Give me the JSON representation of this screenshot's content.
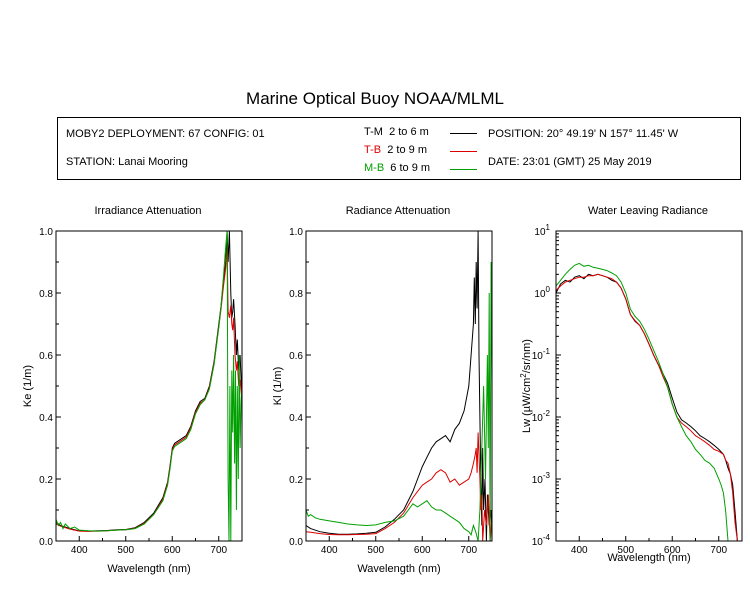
{
  "title": "Marine Optical Buoy NOAA/MLML",
  "info": {
    "deployment": "MOBY2 DEPLOYMENT: 67 CONFIG: 01",
    "station": "STATION: Lanai Mooring",
    "position": "POSITION: 20° 49.19' N   157° 11.45' W",
    "date": "DATE: 23:01 (GMT) 25 May 2019"
  },
  "legend": [
    {
      "code": "T-M",
      "range": "2 to 6  m",
      "color": "#000000"
    },
    {
      "code": "T-B",
      "range": "2 to 9  m",
      "color": "#dd0000"
    },
    {
      "code": "M-B",
      "range": "6 to 9  m",
      "color": "#00a000"
    }
  ],
  "chart_data": [
    {
      "type": "line",
      "title": "Irradiance Attenuation",
      "xlabel": "Wavelength (nm)",
      "ylabel": "Ke  (1/m)",
      "xlim": [
        350,
        750
      ],
      "ylim": [
        0,
        1.0
      ],
      "xticks": [
        "400",
        "500",
        "600",
        "700"
      ],
      "yticks": [
        "0.0",
        "0.2",
        "0.4",
        "0.6",
        "0.8",
        "1.0"
      ],
      "series": [
        {
          "color": "#000000",
          "x": [
            350,
            360,
            380,
            400,
            420,
            440,
            460,
            480,
            500,
            520,
            540,
            560,
            580,
            590,
            595,
            600,
            605,
            610,
            620,
            630,
            640,
            650,
            660,
            670,
            680,
            690,
            700,
            705,
            710,
            715,
            718,
            720,
            723,
            726,
            728,
            730,
            732,
            735,
            738,
            740,
            743,
            746,
            750
          ],
          "y": [
            0.06,
            0.05,
            0.04,
            0.033,
            0.032,
            0.033,
            0.034,
            0.036,
            0.037,
            0.043,
            0.06,
            0.09,
            0.14,
            0.19,
            0.24,
            0.3,
            0.315,
            0.32,
            0.33,
            0.34,
            0.37,
            0.42,
            0.45,
            0.46,
            0.5,
            0.58,
            0.7,
            0.76,
            0.84,
            0.9,
            1.0,
            0.9,
            1.0,
            0.8,
            0.72,
            0.74,
            0.78,
            0.7,
            0.6,
            0.65,
            0.55,
            0.6,
            0.45
          ]
        },
        {
          "color": "#dd0000",
          "x": [
            350,
            360,
            380,
            400,
            420,
            440,
            460,
            480,
            500,
            520,
            540,
            560,
            580,
            590,
            595,
            600,
            605,
            610,
            620,
            630,
            640,
            650,
            660,
            670,
            680,
            690,
            700,
            705,
            710,
            715,
            718,
            720,
            723,
            726,
            728,
            730,
            732,
            735,
            738,
            740,
            743,
            746,
            750
          ],
          "y": [
            0.055,
            0.048,
            0.038,
            0.032,
            0.031,
            0.032,
            0.033,
            0.035,
            0.036,
            0.041,
            0.057,
            0.085,
            0.135,
            0.185,
            0.235,
            0.295,
            0.31,
            0.315,
            0.325,
            0.335,
            0.365,
            0.415,
            0.445,
            0.455,
            0.495,
            0.575,
            0.69,
            0.75,
            0.82,
            0.88,
            0.95,
            0.74,
            0.72,
            0.76,
            0.7,
            0.68,
            0.72,
            0.6,
            0.55,
            0.58,
            0.5,
            0.52,
            0.45
          ]
        },
        {
          "color": "#00a000",
          "x": [
            350,
            355,
            360,
            365,
            370,
            380,
            390,
            400,
            420,
            440,
            460,
            480,
            500,
            520,
            540,
            560,
            580,
            590,
            595,
            600,
            605,
            610,
            620,
            630,
            640,
            650,
            660,
            670,
            680,
            690,
            700,
            705,
            710,
            715,
            718,
            720,
            722,
            724,
            726,
            728,
            730,
            732,
            734,
            736,
            738,
            740,
            742,
            744,
            746,
            748,
            750
          ],
          "y": [
            0.07,
            0.05,
            0.06,
            0.04,
            0.055,
            0.04,
            0.045,
            0.035,
            0.033,
            0.032,
            0.033,
            0.035,
            0.036,
            0.04,
            0.055,
            0.085,
            0.13,
            0.18,
            0.23,
            0.29,
            0.305,
            0.31,
            0.32,
            0.33,
            0.36,
            0.41,
            0.44,
            0.455,
            0.49,
            0.57,
            0.69,
            0.76,
            0.85,
            0.95,
            1.0,
            0.2,
            0.0,
            0.5,
            0.0,
            0.55,
            0.35,
            0.6,
            0.25,
            0.55,
            0.1,
            0.5,
            0.2,
            0.6,
            0.3,
            0.45,
            0.5
          ]
        }
      ]
    },
    {
      "type": "line",
      "title": "Radiance Attenuation",
      "xlabel": "Wavelength (nm)",
      "ylabel": "Kl  (1/m)",
      "xlim": [
        350,
        750
      ],
      "ylim": [
        0,
        1.0
      ],
      "xticks": [
        "400",
        "500",
        "600",
        "700"
      ],
      "yticks": [
        "0.0",
        "0.2",
        "0.4",
        "0.6",
        "0.8",
        "1.0"
      ],
      "series": [
        {
          "color": "#000000",
          "x": [
            350,
            360,
            380,
            400,
            420,
            440,
            460,
            480,
            500,
            520,
            540,
            560,
            580,
            590,
            600,
            610,
            620,
            630,
            640,
            650,
            660,
            670,
            680,
            690,
            700,
            705,
            710,
            712,
            714,
            716,
            718,
            720,
            722,
            724,
            726,
            728,
            730,
            732,
            735,
            738,
            740,
            744,
            748,
            750
          ],
          "y": [
            0.05,
            0.04,
            0.03,
            0.025,
            0.022,
            0.022,
            0.023,
            0.025,
            0.028,
            0.045,
            0.07,
            0.1,
            0.16,
            0.2,
            0.24,
            0.27,
            0.3,
            0.32,
            0.33,
            0.34,
            0.32,
            0.36,
            0.38,
            0.42,
            0.5,
            0.6,
            0.7,
            0.85,
            0.7,
            0.9,
            0.75,
            1.0,
            0.6,
            0.4,
            0.2,
            0.05,
            0.3,
            0.1,
            0.2,
            0.0,
            0.15,
            0.05,
            0.1,
            0.0
          ]
        },
        {
          "color": "#dd0000",
          "x": [
            350,
            360,
            380,
            400,
            420,
            440,
            460,
            480,
            500,
            520,
            540,
            560,
            580,
            590,
            600,
            610,
            620,
            630,
            640,
            650,
            660,
            670,
            680,
            690,
            700,
            705,
            710,
            714,
            716,
            718,
            720,
            722,
            724,
            726,
            728,
            730,
            734,
            738,
            742,
            746,
            750
          ],
          "y": [
            0.03,
            0.028,
            0.024,
            0.021,
            0.02,
            0.02,
            0.021,
            0.022,
            0.024,
            0.04,
            0.06,
            0.09,
            0.14,
            0.16,
            0.18,
            0.19,
            0.2,
            0.22,
            0.23,
            0.22,
            0.19,
            0.2,
            0.18,
            0.19,
            0.2,
            0.22,
            0.25,
            0.28,
            0.3,
            0.22,
            0.35,
            0.28,
            0.2,
            0.1,
            0.15,
            0.0,
            0.1,
            0.05,
            0.15,
            0.0,
            0.08
          ]
        },
        {
          "color": "#00a000",
          "x": [
            350,
            355,
            360,
            370,
            380,
            400,
            420,
            440,
            460,
            480,
            500,
            520,
            540,
            560,
            580,
            590,
            600,
            610,
            620,
            630,
            640,
            650,
            660,
            670,
            680,
            690,
            700,
            705,
            710,
            715,
            720,
            724,
            728,
            732,
            736,
            740,
            742,
            744,
            746,
            748,
            750
          ],
          "y": [
            0.1,
            0.08,
            0.085,
            0.075,
            0.07,
            0.065,
            0.06,
            0.055,
            0.052,
            0.05,
            0.052,
            0.06,
            0.065,
            0.08,
            0.12,
            0.11,
            0.12,
            0.13,
            0.11,
            0.1,
            0.1,
            0.09,
            0.08,
            0.07,
            0.06,
            0.04,
            0.03,
            0.02,
            0.05,
            0.03,
            0.0,
            0.1,
            0.3,
            0.5,
            0.2,
            0.6,
            0.3,
            0.8,
            0.0,
            0.9,
            0.5
          ]
        }
      ]
    },
    {
      "type": "line",
      "title": "Water Leaving Radiance",
      "xlabel": "Wavelength (nm)",
      "ylabel": "Lw  (µW/cm²/sr/nm)",
      "ylabel_main": "Lw  (µW/cm",
      "ylabel_sup": "2",
      "ylabel_end": "/sr/nm)",
      "yscale": "log",
      "xlim": [
        350,
        750
      ],
      "ylim": [
        0.0001,
        10
      ],
      "xticks": [
        "400",
        "500",
        "600",
        "700"
      ],
      "yticks": [
        {
          "base": "10",
          "exp": "1"
        },
        {
          "base": "10",
          "exp": "0"
        },
        {
          "base": "10",
          "exp": "-1"
        },
        {
          "base": "10",
          "exp": "-2"
        },
        {
          "base": "10",
          "exp": "-3"
        },
        {
          "base": "10",
          "exp": "-4"
        }
      ],
      "series": [
        {
          "color": "#000000",
          "x": [
            350,
            360,
            370,
            380,
            390,
            400,
            410,
            420,
            430,
            440,
            450,
            460,
            470,
            480,
            490,
            500,
            510,
            520,
            530,
            540,
            550,
            560,
            570,
            580,
            590,
            600,
            610,
            620,
            630,
            640,
            650,
            660,
            670,
            680,
            690,
            700,
            710,
            715,
            720,
            725,
            730,
            735,
            740
          ],
          "y": [
            1.0,
            1.4,
            1.6,
            1.5,
            1.8,
            1.9,
            1.7,
            2.0,
            1.9,
            2.0,
            1.9,
            1.8,
            1.6,
            1.5,
            1.2,
            0.8,
            0.45,
            0.35,
            0.3,
            0.22,
            0.15,
            0.1,
            0.07,
            0.05,
            0.035,
            0.02,
            0.012,
            0.009,
            0.008,
            0.007,
            0.006,
            0.005,
            0.0045,
            0.004,
            0.0035,
            0.003,
            0.0025,
            0.002,
            0.0015,
            0.0012,
            0.0008,
            0.0003,
            0.0001
          ]
        },
        {
          "color": "#dd0000",
          "x": [
            350,
            360,
            370,
            380,
            390,
            400,
            410,
            420,
            430,
            440,
            450,
            460,
            470,
            480,
            490,
            500,
            510,
            520,
            530,
            540,
            550,
            560,
            570,
            580,
            590,
            600,
            610,
            620,
            630,
            640,
            650,
            660,
            670,
            680,
            690,
            700,
            710,
            715,
            720,
            725,
            730,
            735,
            740
          ],
          "y": [
            1.1,
            1.3,
            1.5,
            1.6,
            1.7,
            1.8,
            1.8,
            1.9,
            1.9,
            2.0,
            1.9,
            1.8,
            1.7,
            1.5,
            1.2,
            0.8,
            0.45,
            0.36,
            0.3,
            0.22,
            0.15,
            0.1,
            0.07,
            0.045,
            0.03,
            0.016,
            0.01,
            0.008,
            0.007,
            0.006,
            0.005,
            0.0045,
            0.004,
            0.0035,
            0.003,
            0.0028,
            0.0025,
            0.002,
            0.0018,
            0.0012,
            0.0006,
            0.0002,
            0.0001
          ]
        },
        {
          "color": "#00a000",
          "x": [
            350,
            360,
            370,
            380,
            390,
            400,
            410,
            420,
            430,
            440,
            450,
            460,
            470,
            480,
            490,
            500,
            510,
            520,
            530,
            540,
            550,
            560,
            570,
            580,
            590,
            600,
            610,
            620,
            630,
            640,
            650,
            660,
            670,
            680,
            690,
            700,
            705,
            710,
            715,
            720
          ],
          "y": [
            1.3,
            1.6,
            2.0,
            2.4,
            2.8,
            3.0,
            2.7,
            2.8,
            2.6,
            2.5,
            2.4,
            2.3,
            2.1,
            1.9,
            1.5,
            1.0,
            0.55,
            0.42,
            0.35,
            0.26,
            0.18,
            0.12,
            0.08,
            0.05,
            0.03,
            0.016,
            0.01,
            0.007,
            0.005,
            0.004,
            0.003,
            0.0025,
            0.002,
            0.0018,
            0.0015,
            0.001,
            0.0008,
            0.0006,
            0.0003,
            0.0001
          ]
        }
      ]
    }
  ]
}
